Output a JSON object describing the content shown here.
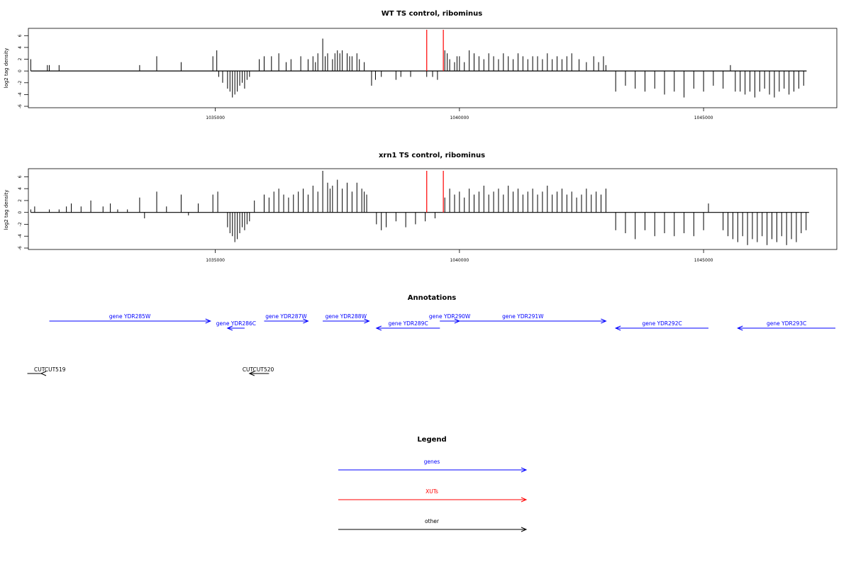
{
  "chart_data": [
    {
      "type": "bar",
      "title": "WT TS control, ribominus",
      "ylabel": "log2 tag density",
      "xlabel": "",
      "xlim": [
        1031200,
        1047700
      ],
      "ylim": [
        -6,
        7
      ],
      "yticks": [
        6,
        4,
        2,
        0,
        -2,
        -4,
        -6
      ],
      "xticks": [
        1035000,
        1040000,
        1045000
      ],
      "baseline": 0,
      "x": [
        1031220,
        1031560,
        1031600,
        1031800,
        1033450,
        1033800,
        1034300,
        1034950,
        1035030,
        1035070,
        1035150,
        1035250,
        1035300,
        1035350,
        1035400,
        1035450,
        1035500,
        1035550,
        1035600,
        1035650,
        1035700,
        1035900,
        1036000,
        1036150,
        1036300,
        1036450,
        1036550,
        1036750,
        1036900,
        1037000,
        1037050,
        1037100,
        1037200,
        1037250,
        1037300,
        1037400,
        1037450,
        1037500,
        1037550,
        1037600,
        1037700,
        1037750,
        1037800,
        1037900,
        1037950,
        1038050,
        1038200,
        1038280,
        1038400,
        1038700,
        1038800,
        1039000,
        1039330,
        1039450,
        1039550,
        1039700,
        1039750,
        1039800,
        1039900,
        1039950,
        1040000,
        1040100,
        1040200,
        1040300,
        1040400,
        1040500,
        1040600,
        1040700,
        1040800,
        1040900,
        1041000,
        1041100,
        1041200,
        1041300,
        1041400,
        1041500,
        1041600,
        1041700,
        1041800,
        1041900,
        1042000,
        1042100,
        1042200,
        1042300,
        1042450,
        1042600,
        1042750,
        1042850,
        1042950,
        1043000,
        1043200,
        1043400,
        1043600,
        1043800,
        1044000,
        1044200,
        1044400,
        1044600,
        1044800,
        1045000,
        1045200,
        1045400,
        1045550,
        1045650,
        1045750,
        1045850,
        1045950,
        1046050,
        1046150,
        1046250,
        1046350,
        1046450,
        1046550,
        1046650,
        1046750,
        1046850,
        1046950,
        1047050
      ],
      "values": [
        2.0,
        1.0,
        1.0,
        1.0,
        1.0,
        2.5,
        1.5,
        2.5,
        3.5,
        -1.0,
        -2.0,
        -3.0,
        -3.5,
        -4.5,
        -4.0,
        -3.5,
        -2.5,
        -2.0,
        -3.0,
        -1.5,
        -1.0,
        2.0,
        2.5,
        2.5,
        3.0,
        1.5,
        2.0,
        2.5,
        2.0,
        2.5,
        1.5,
        3.0,
        5.5,
        2.5,
        3.0,
        2.0,
        3.0,
        3.5,
        3.0,
        3.5,
        3.0,
        2.5,
        2.5,
        3.0,
        2.0,
        1.5,
        -2.5,
        -1.5,
        -1.0,
        -1.5,
        -1.0,
        -1.0,
        -1.0,
        -1.0,
        -1.5,
        3.5,
        3.0,
        2.0,
        1.5,
        2.5,
        2.5,
        1.5,
        3.5,
        3.0,
        2.5,
        2.0,
        3.0,
        2.5,
        2.0,
        3.0,
        2.5,
        2.0,
        3.0,
        2.5,
        2.0,
        2.5,
        2.5,
        2.0,
        3.0,
        2.0,
        2.5,
        2.0,
        2.5,
        3.0,
        2.0,
        1.5,
        2.5,
        1.5,
        2.5,
        1.0,
        -3.5,
        -2.5,
        -3.0,
        -3.5,
        -3.0,
        -4.0,
        -3.5,
        -4.5,
        -3.0,
        -3.5,
        -2.5,
        -3.0,
        1.0,
        -3.5,
        -3.5,
        -4.0,
        -3.5,
        -4.5,
        -3.5,
        -3.0,
        -4.0,
        -4.5,
        -3.5,
        -3.0,
        -4.0,
        -3.5,
        -3.0,
        -2.5
      ],
      "markers": [
        1039330,
        1039670
      ]
    },
    {
      "type": "bar",
      "title": "xrn1 TS control, ribominus",
      "ylabel": "log2 tag density",
      "xlabel": "",
      "xlim": [
        1031200,
        1047700
      ],
      "ylim": [
        -6,
        7
      ],
      "yticks": [
        6,
        4,
        2,
        0,
        -2,
        -4,
        -6
      ],
      "xticks": [
        1035000,
        1040000,
        1045000
      ],
      "baseline": 0,
      "x": [
        1031220,
        1031300,
        1031600,
        1031800,
        1031950,
        1032050,
        1032250,
        1032450,
        1032700,
        1032850,
        1033000,
        1033200,
        1033450,
        1033550,
        1033800,
        1034000,
        1034300,
        1034450,
        1034650,
        1034950,
        1035050,
        1035250,
        1035300,
        1035350,
        1035400,
        1035450,
        1035500,
        1035550,
        1035600,
        1035650,
        1035700,
        1035800,
        1036000,
        1036100,
        1036200,
        1036300,
        1036400,
        1036500,
        1036600,
        1036700,
        1036800,
        1036900,
        1037000,
        1037100,
        1037200,
        1037300,
        1037350,
        1037400,
        1037500,
        1037600,
        1037700,
        1037800,
        1037900,
        1038000,
        1038050,
        1038100,
        1038300,
        1038400,
        1038500,
        1038700,
        1038900,
        1039100,
        1039300,
        1039500,
        1039700,
        1039800,
        1039900,
        1040000,
        1040100,
        1040200,
        1040300,
        1040400,
        1040500,
        1040600,
        1040700,
        1040800,
        1040900,
        1041000,
        1041100,
        1041200,
        1041300,
        1041400,
        1041500,
        1041600,
        1041700,
        1041800,
        1041900,
        1042000,
        1042100,
        1042200,
        1042300,
        1042400,
        1042500,
        1042600,
        1042700,
        1042800,
        1042900,
        1043000,
        1043200,
        1043400,
        1043600,
        1043800,
        1044000,
        1044200,
        1044400,
        1044600,
        1044800,
        1045000,
        1045100,
        1045400,
        1045500,
        1045600,
        1045700,
        1045800,
        1045900,
        1046000,
        1046100,
        1046200,
        1046300,
        1046400,
        1046500,
        1046600,
        1046700,
        1046800,
        1046900,
        1047000,
        1047100
      ],
      "values": [
        0.5,
        1.0,
        0.5,
        0.5,
        1.0,
        1.5,
        1.0,
        2.0,
        1.0,
        1.5,
        0.5,
        0.5,
        2.5,
        -1.0,
        3.5,
        1.0,
        3.0,
        -0.5,
        1.5,
        3.0,
        3.5,
        -2.5,
        -3.5,
        -4.0,
        -5.0,
        -4.5,
        -3.5,
        -2.5,
        -3.0,
        -2.0,
        -1.5,
        2.0,
        3.0,
        2.5,
        3.5,
        4.0,
        3.0,
        2.5,
        3.0,
        3.5,
        4.0,
        3.0,
        4.5,
        3.5,
        7.0,
        5.0,
        4.0,
        4.5,
        5.5,
        4.0,
        5.0,
        3.5,
        5.0,
        4.0,
        3.5,
        3.0,
        -2.0,
        -3.0,
        -2.5,
        -1.5,
        -2.5,
        -2.0,
        -1.5,
        -1.0,
        2.5,
        4.0,
        3.0,
        3.5,
        2.5,
        4.0,
        3.0,
        3.5,
        4.5,
        3.0,
        3.5,
        4.0,
        3.0,
        4.5,
        3.5,
        4.0,
        3.0,
        3.5,
        4.0,
        3.0,
        3.5,
        4.5,
        3.0,
        3.5,
        4.0,
        3.0,
        3.5,
        2.5,
        3.0,
        4.0,
        3.0,
        3.5,
        3.0,
        4.0,
        -3.0,
        -3.5,
        -4.5,
        -3.0,
        -4.0,
        -3.5,
        -4.0,
        -3.5,
        -4.0,
        -3.0,
        1.5,
        -3.0,
        -4.0,
        -4.5,
        -5.0,
        -4.0,
        -5.5,
        -4.5,
        -5.0,
        -4.0,
        -5.5,
        -4.5,
        -5.0,
        -4.0,
        -5.5,
        -4.5,
        -5.0,
        -3.5,
        -3.0
      ],
      "markers": [
        1039330,
        1039670
      ]
    }
  ],
  "annotations": {
    "title": "Annotations",
    "genes": [
      {
        "label": "gene YDR285W",
        "x1": 1031600,
        "x2": 1034900,
        "dir": "right",
        "row": 0
      },
      {
        "label": "gene YDR286C",
        "x1": 1035250,
        "x2": 1035600,
        "dir": "left",
        "row": 1
      },
      {
        "label": "gene YDR287W",
        "x1": 1036000,
        "x2": 1036900,
        "dir": "right",
        "row": 0
      },
      {
        "label": "gene YDR288W",
        "x1": 1037200,
        "x2": 1038150,
        "dir": "right",
        "row": 0
      },
      {
        "label": "gene YDR289C",
        "x1": 1038300,
        "x2": 1039600,
        "dir": "left",
        "row": 1
      },
      {
        "label": "gene YDR290W",
        "x1": 1039600,
        "x2": 1040000,
        "dir": "right",
        "row": 0
      },
      {
        "label": "gene YDR291W",
        "x1": 1039600,
        "x2": 1043000,
        "dir": "right",
        "row": 0
      },
      {
        "label": "gene YDR292C",
        "x1": 1043200,
        "x2": 1045100,
        "dir": "left",
        "row": 1
      },
      {
        "label": "gene YDR293C",
        "x1": 1045700,
        "x2": 1047700,
        "dir": "left",
        "row": 1
      }
    ],
    "other": [
      {
        "label": "CUTCUT519",
        "x1": 1030750,
        "x2": 1031150,
        "dir": "left"
      },
      {
        "label": "CUTCUT520",
        "x1": 1035700,
        "x2": 1036100,
        "dir": "left"
      }
    ]
  },
  "legend": {
    "title": "Legend",
    "items": [
      {
        "label": "genes",
        "color": "#0000ff"
      },
      {
        "label": "XUTs",
        "color": "#ff0000"
      },
      {
        "label": "other",
        "color": "#000000"
      }
    ]
  },
  "colors": {
    "gene": "#0000ff",
    "xut": "#ff0000",
    "other": "#000000",
    "marker": "#ff0000"
  }
}
